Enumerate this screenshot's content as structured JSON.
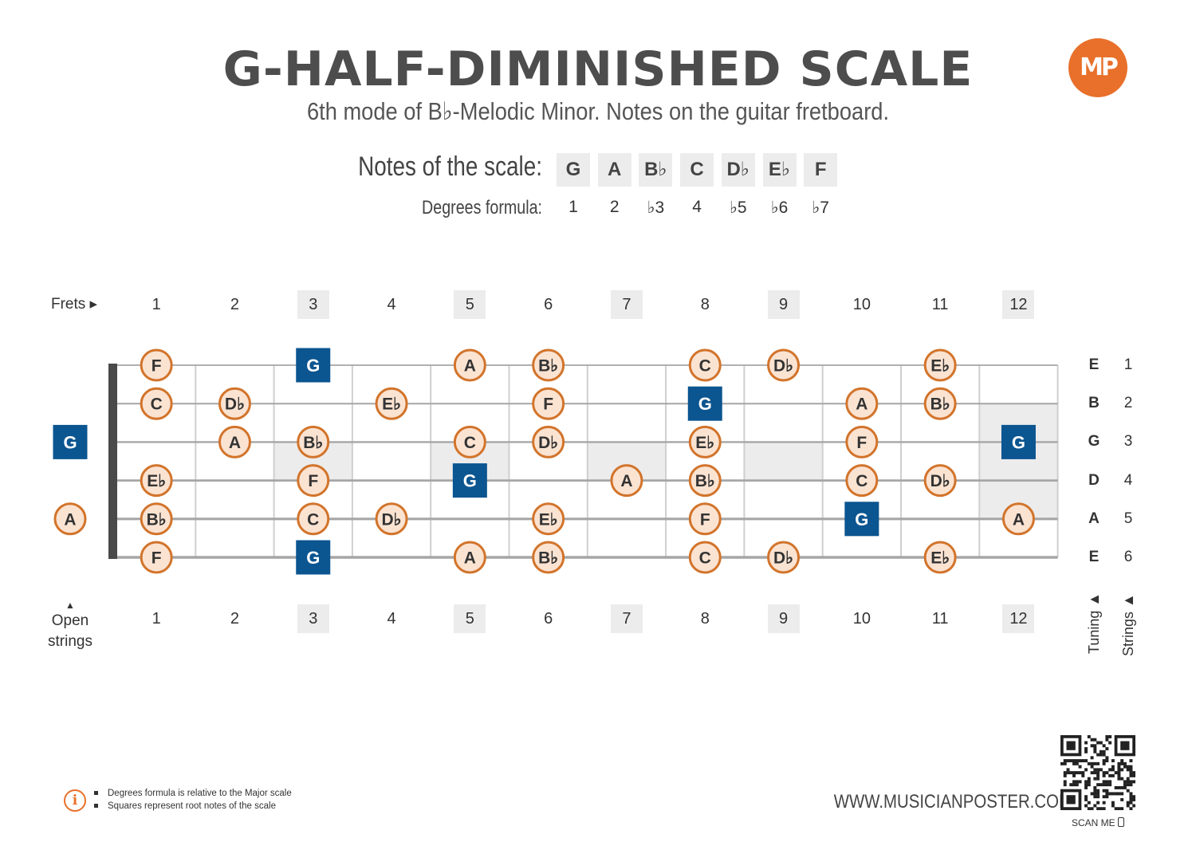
{
  "title": "G-HALF-DIMINISHED SCALE",
  "subtitle": "6th mode of B♭-Melodic Minor. Notes on the guitar fretboard.",
  "logo_text": "MP",
  "scale": {
    "notes_label": "Notes of the scale:",
    "degrees_label": "Degrees formula:",
    "notes": [
      "G",
      "A",
      "B♭",
      "C",
      "D♭",
      "E♭",
      "F"
    ],
    "degrees": [
      "1",
      "2",
      "♭3",
      "4",
      "♭5",
      "♭6",
      "♭7"
    ]
  },
  "fretboard": {
    "frets_label": "Frets ▸",
    "open_label_line1": "Open",
    "open_label_line2": "strings",
    "open_arrow": "▲",
    "tuning_label": "Tuning ▲",
    "strings_label": "Strings ▲",
    "fret_numbers": [
      "1",
      "2",
      "3",
      "4",
      "5",
      "6",
      "7",
      "8",
      "9",
      "10",
      "11",
      "12"
    ],
    "shaded_frets": [
      3,
      5,
      7,
      9,
      12
    ],
    "tuning": [
      "E",
      "B",
      "G",
      "D",
      "A",
      "E"
    ],
    "string_numbers": [
      "1",
      "2",
      "3",
      "4",
      "5",
      "6"
    ],
    "root_note": "G",
    "open_notes": {
      "3": "G",
      "5": "A"
    },
    "notes": [
      {
        "string": 1,
        "fret": 1,
        "note": "F"
      },
      {
        "string": 1,
        "fret": 3,
        "note": "G"
      },
      {
        "string": 1,
        "fret": 5,
        "note": "A"
      },
      {
        "string": 1,
        "fret": 6,
        "note": "B♭"
      },
      {
        "string": 1,
        "fret": 8,
        "note": "C"
      },
      {
        "string": 1,
        "fret": 9,
        "note": "D♭"
      },
      {
        "string": 1,
        "fret": 11,
        "note": "E♭"
      },
      {
        "string": 2,
        "fret": 1,
        "note": "C"
      },
      {
        "string": 2,
        "fret": 2,
        "note": "D♭"
      },
      {
        "string": 2,
        "fret": 4,
        "note": "E♭"
      },
      {
        "string": 2,
        "fret": 6,
        "note": "F"
      },
      {
        "string": 2,
        "fret": 8,
        "note": "G"
      },
      {
        "string": 2,
        "fret": 10,
        "note": "A"
      },
      {
        "string": 2,
        "fret": 11,
        "note": "B♭"
      },
      {
        "string": 3,
        "fret": 2,
        "note": "A"
      },
      {
        "string": 3,
        "fret": 3,
        "note": "B♭"
      },
      {
        "string": 3,
        "fret": 5,
        "note": "C"
      },
      {
        "string": 3,
        "fret": 6,
        "note": "D♭"
      },
      {
        "string": 3,
        "fret": 8,
        "note": "E♭"
      },
      {
        "string": 3,
        "fret": 10,
        "note": "F"
      },
      {
        "string": 3,
        "fret": 12,
        "note": "G"
      },
      {
        "string": 4,
        "fret": 1,
        "note": "E♭"
      },
      {
        "string": 4,
        "fret": 3,
        "note": "F"
      },
      {
        "string": 4,
        "fret": 5,
        "note": "G"
      },
      {
        "string": 4,
        "fret": 7,
        "note": "A"
      },
      {
        "string": 4,
        "fret": 8,
        "note": "B♭"
      },
      {
        "string": 4,
        "fret": 10,
        "note": "C"
      },
      {
        "string": 4,
        "fret": 11,
        "note": "D♭"
      },
      {
        "string": 5,
        "fret": 1,
        "note": "B♭"
      },
      {
        "string": 5,
        "fret": 3,
        "note": "C"
      },
      {
        "string": 5,
        "fret": 4,
        "note": "D♭"
      },
      {
        "string": 5,
        "fret": 6,
        "note": "E♭"
      },
      {
        "string": 5,
        "fret": 8,
        "note": "F"
      },
      {
        "string": 5,
        "fret": 10,
        "note": "G"
      },
      {
        "string": 5,
        "fret": 12,
        "note": "A"
      },
      {
        "string": 6,
        "fret": 1,
        "note": "F"
      },
      {
        "string": 6,
        "fret": 3,
        "note": "G"
      },
      {
        "string": 6,
        "fret": 5,
        "note": "A"
      },
      {
        "string": 6,
        "fret": 6,
        "note": "B♭"
      },
      {
        "string": 6,
        "fret": 8,
        "note": "C"
      },
      {
        "string": 6,
        "fret": 9,
        "note": "D♭"
      },
      {
        "string": 6,
        "fret": 11,
        "note": "E♭"
      }
    ]
  },
  "footer": {
    "info_icon": "i",
    "note1": "Degrees formula is relative to the Major scale",
    "note2": "Squares represent root notes of the scale",
    "website": "WWW.MUSICIANPOSTER.COM",
    "scan_me": "SCAN ME"
  },
  "colors": {
    "root_fill": "#0b5590",
    "note_fill": "#fbe3d2",
    "note_border": "#d2742b",
    "shade": "#ececec",
    "accent": "#e8702a"
  }
}
